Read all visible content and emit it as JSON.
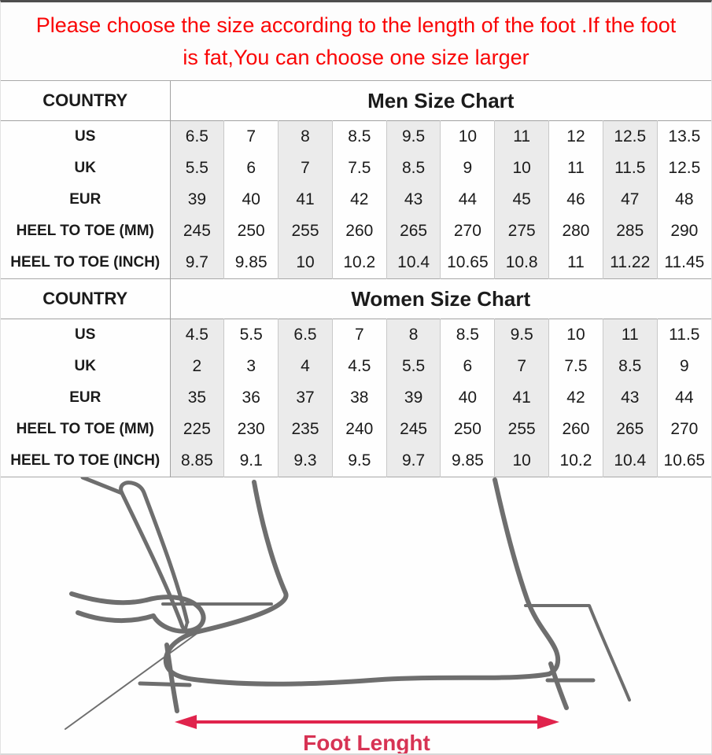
{
  "notice": {
    "line1": "Please choose the size according to the length of the foot .If the foot",
    "line2": "is fat,You can choose one size larger",
    "text_color": "#fa0505"
  },
  "men_table": {
    "country_label": "COUNTRY",
    "title": "Men Size Chart",
    "rows": [
      {
        "label": "US",
        "values": [
          "6.5",
          "7",
          "8",
          "8.5",
          "9.5",
          "10",
          "11",
          "12",
          "12.5",
          "13.5"
        ]
      },
      {
        "label": "UK",
        "values": [
          "5.5",
          "6",
          "7",
          "7.5",
          "8.5",
          "9",
          "10",
          "11",
          "11.5",
          "12.5"
        ]
      },
      {
        "label": "EUR",
        "values": [
          "39",
          "40",
          "41",
          "42",
          "43",
          "44",
          "45",
          "46",
          "47",
          "48"
        ]
      },
      {
        "label": "HEEL TO TOE (MM)",
        "values": [
          "245",
          "250",
          "255",
          "260",
          "265",
          "270",
          "275",
          "280",
          "285",
          "290"
        ]
      },
      {
        "label": "HEEL TO TOE (INCH)",
        "values": [
          "9.7",
          "9.85",
          "10",
          "10.2",
          "10.4",
          "10.65",
          "10.8",
          "11",
          "11.22",
          "11.45"
        ]
      }
    ]
  },
  "women_table": {
    "country_label": "COUNTRY",
    "title": "Women Size Chart",
    "rows": [
      {
        "label": "US",
        "values": [
          "4.5",
          "5.5",
          "6.5",
          "7",
          "8",
          "8.5",
          "9.5",
          "10",
          "11",
          "11.5"
        ]
      },
      {
        "label": "UK",
        "values": [
          "2",
          "3",
          "4",
          "4.5",
          "5.5",
          "6",
          "7",
          "7.5",
          "8.5",
          "9"
        ]
      },
      {
        "label": "EUR",
        "values": [
          "35",
          "36",
          "37",
          "38",
          "39",
          "40",
          "41",
          "42",
          "43",
          "44"
        ]
      },
      {
        "label": "HEEL TO TOE (MM)",
        "values": [
          "225",
          "230",
          "235",
          "240",
          "245",
          "250",
          "255",
          "260",
          "265",
          "270"
        ]
      },
      {
        "label": "HEEL TO TOE (INCH)",
        "values": [
          "8.85",
          "9.1",
          "9.3",
          "9.5",
          "9.7",
          "9.85",
          "10",
          "10.2",
          "10.4",
          "10.65"
        ]
      }
    ]
  },
  "diagram": {
    "label": "Foot Lenght",
    "arrow_color": "#e0234c",
    "label_color": "#d73354",
    "sketch_color": "#6e6e6e"
  },
  "colors": {
    "notice_red": "#fa0505",
    "column_shading": "#ebebeb",
    "grid_line": "#c9c9c9",
    "header_line": "#a2a2a2",
    "sketch_gray": "#6e6e6e",
    "arrow_red": "#e0234c",
    "label_red": "#d73354"
  }
}
